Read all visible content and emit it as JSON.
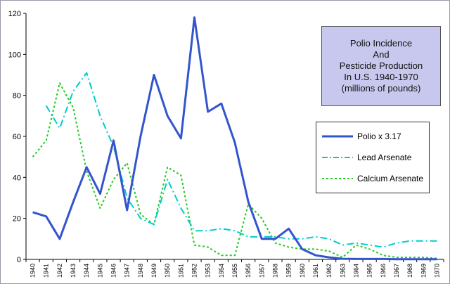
{
  "chart_data": {
    "type": "line",
    "title": "Polio Incidence And Pesticide Production In U.S. 1940-1970 (millions of pounds)",
    "title_lines": [
      "Polio Incidence",
      "And",
      "Pesticide Production",
      "In U.S. 1940-1970",
      "(millions of pounds)"
    ],
    "x": [
      1940,
      1941,
      1942,
      1943,
      1944,
      1945,
      1946,
      1947,
      1948,
      1949,
      1950,
      1951,
      1952,
      1953,
      1954,
      1955,
      1956,
      1957,
      1958,
      1959,
      1960,
      1961,
      1962,
      1963,
      1964,
      1965,
      1966,
      1967,
      1968,
      1969,
      1970
    ],
    "ylim": [
      0,
      120
    ],
    "yticks": [
      0,
      20,
      40,
      60,
      80,
      100,
      120
    ],
    "grid": false,
    "legend_position": "right",
    "series": [
      {
        "name": "Polio x 3.17",
        "color": "#3355cc",
        "style": "solid",
        "values": [
          23,
          21,
          10,
          28,
          45,
          32,
          58,
          24,
          60,
          90,
          70,
          59,
          118,
          72,
          76,
          57,
          28,
          10,
          10,
          15,
          5,
          2,
          1,
          0.3,
          0.2,
          0.2,
          0.2,
          0.1,
          0.1,
          0.1,
          0.1
        ]
      },
      {
        "name": "Lead Arsenate",
        "color": "#00cccc",
        "style": "dashdot",
        "values": [
          null,
          75,
          64,
          82,
          91,
          70,
          55,
          30,
          20,
          17,
          39,
          25,
          14,
          14,
          15,
          14,
          11,
          11,
          11,
          10,
          10,
          11,
          10,
          7,
          8,
          7,
          6,
          8,
          9,
          9,
          9
        ]
      },
      {
        "name": "Calcium Arsenate",
        "color": "#22cc22",
        "style": "dotted",
        "values": [
          50,
          58,
          86,
          74,
          43,
          25,
          39,
          47,
          22,
          17,
          45,
          41,
          7,
          6,
          2,
          2,
          27,
          20,
          8,
          6,
          5,
          5,
          4,
          1,
          7,
          5,
          2,
          1,
          1,
          1,
          0.5
        ]
      }
    ]
  }
}
